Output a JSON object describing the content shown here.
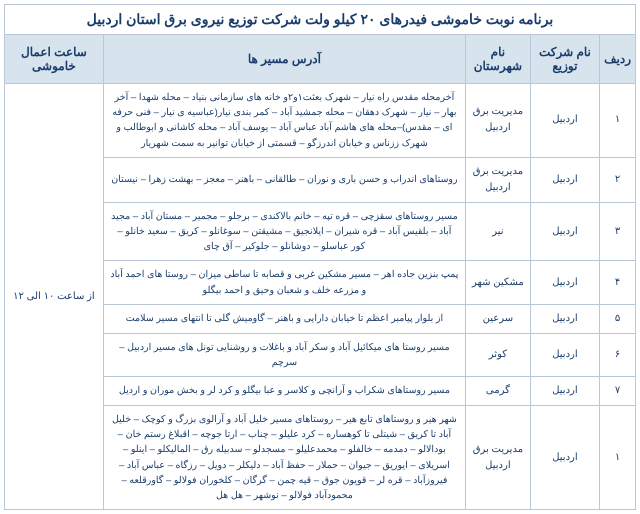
{
  "title": "برنامه نوبت خاموشی فیدرهای ۲۰ کیلو ولت شرکت توزیع نیروی برق استان اردبیل",
  "headers": {
    "row": "ردیف",
    "company": "نام شرکت توزیع",
    "city": "نام شهرستان",
    "route": "آدرس مسیر ها",
    "time": "ساعت اعمال خاموشی"
  },
  "time_value": "از ساعت ۱۰ الی ۱۲",
  "rows": [
    {
      "num": "۱",
      "company": "اردبیل",
      "city": "مدیریت برق اردبیل",
      "route": "آخرمحله مقدس راه نیار – شهرک بعثت۱و۲و خانه های سازمانی بنیاد – محله شهدا – آخر بهار – نیار – شهرک دهقان – محله جمشید آباد – کمر بندی نیار(عباسیه ی نیار – فنی حرفه ای – مقدس)–محله های هاشم آباد عباس آباد – یوسف آباد – محله کاشانی و ابوطالب و شهرک ززناس و خیابان اندرزگو – قسمتی از خیابان توانیر به سمت شهریار"
    },
    {
      "num": "۲",
      "company": "اردبیل",
      "city": "مدیریت برق اردبیل",
      "route": "روستاهای اندراب و حسن باری و نوران – طالقانی – باهنر – معجز – بهشت زهرا – نیستان"
    },
    {
      "num": "۳",
      "company": "اردبیل",
      "city": "نیر",
      "route": "مسیر روستاهای سقزچی – قره تپه – خانم بالاکندی – برجلو – مجمیر – مستان آباد – مجید آباد – بلقیس آباد – قره شیران – ایلانجیق – مشیقتن – سوغانلو – کریق – سعید خانلو – کور عباسلو – دوشانلو – جلوکیر – آق چای"
    },
    {
      "num": "۴",
      "company": "اردبیل",
      "city": "مشکین شهر",
      "route": "پمپ بنزین جاده اهر – مسیر مشکین غربی و قصابه تا ساطی میزان – روستا های احمد آباد و مزرعه خلف و شعبان وحیق و احمد بیگلو"
    },
    {
      "num": "۵",
      "company": "اردبیل",
      "city": "سرعین",
      "route": "از بلوار پیامبر اعظم تا خیابان دارایی و باهنر – گاومیش گلی تا انتهای مسیر سلامت"
    },
    {
      "num": "۶",
      "company": "اردبیل",
      "city": "کوثر",
      "route": "مسیر روستا های میکائیل آباد و سکر آباد و باغلات و روشنایی تونل های مسیر اردبیل – سرچم"
    },
    {
      "num": "۷",
      "company": "اردبیل",
      "city": "گرمی",
      "route": "مسیر روستاهای شکراب و آرانچی و کلاسر و عبا بیگلو و کرد لر و بخش موران و اردیل"
    },
    {
      "num": "۱",
      "company": "اردبیل",
      "city": "مدیریت برق اردبیل",
      "route": "شهر هیر و روستاهای تابع هیر – روستاهای مسیر خلیل آباد و آرالوی بزرگ و کوچک – خلیل آباد تا کریق – شیتلی تا کوهساره – کرد علیلو – چناب – ارتا جوچه – اقبلاغ رستم خان – بودالالو – دمدمه – خالفلو – محمدعلیلو – مسجدلو – سدبیله رق – المالیکلو – اینلو – اسریلای – ایوریق – جیوان – حملار – حفظ آباد – دلیکلر – دویل – رزگاه – عباس آباد – فیروزآباد – قره لر – قویون جوق – قیه چمن – گرگان – کلخوران فولالو – گاورقلعه – محمودآباد فولالو – نوشهر – هل هل"
    }
  ]
}
